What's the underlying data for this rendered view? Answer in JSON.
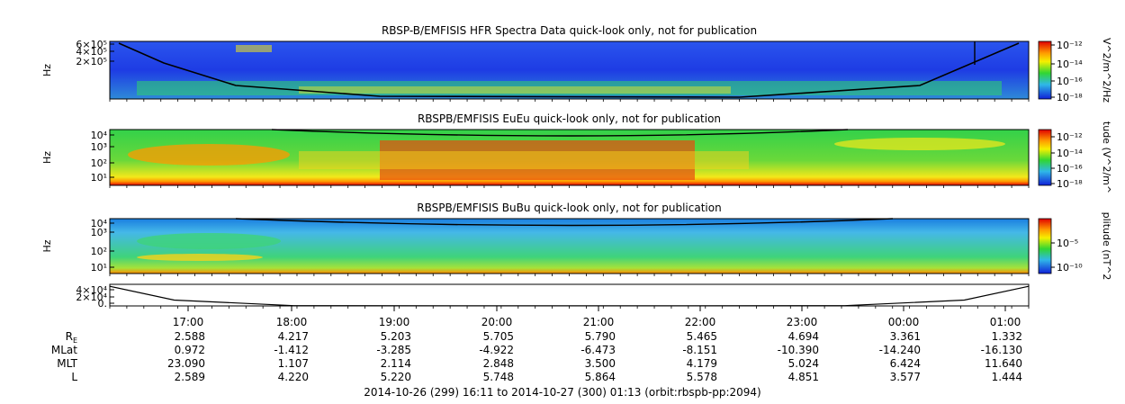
{
  "chart_data": [
    {
      "type": "heatmap",
      "title": "RBSP-B/EMFISIS  HFR Spectra Data quick-look only, not for publication",
      "ylabel": "Hz",
      "y_ticks": [
        "6×10⁵",
        "4×10⁵",
        "2×10⁵"
      ],
      "colorbar_label": "V^2/m^2/Hz",
      "colorbar_ticks": [
        "10⁻¹²",
        "10⁻¹⁴",
        "10⁻¹⁶",
        "10⁻¹⁸"
      ],
      "background": "#1f3fe6"
    },
    {
      "type": "heatmap",
      "title": "RBSPB/EMFISIS  EuEu quick-look only, not for publication",
      "ylabel": "Hz",
      "y_ticks": [
        "10⁴",
        "10³",
        "10²",
        "10¹"
      ],
      "colorbar_label": "tude (V^2/m^",
      "colorbar_ticks": [
        "10⁻¹²",
        "10⁻¹⁴",
        "10⁻¹⁶",
        "10⁻¹⁸"
      ],
      "background": "#3ad64a"
    },
    {
      "type": "heatmap",
      "title": "RBSPB/EMFISIS  BuBu quick-look only, not for publication",
      "ylabel": "Hz",
      "y_ticks": [
        "10⁴",
        "10³",
        "10²",
        "10¹"
      ],
      "colorbar_label": "plitude (nT^2",
      "colorbar_ticks": [
        "10⁻⁵",
        "10⁻¹⁰"
      ],
      "background": "#45b8e8"
    },
    {
      "type": "line",
      "title": "",
      "y_ticks": [
        "4×10⁴",
        "2×10⁴",
        "0."
      ],
      "x": [
        0,
        0.07,
        0.2,
        0.4,
        0.6,
        0.8,
        0.93,
        1.0
      ],
      "values": [
        4.0,
        1.2,
        0.05,
        0.02,
        0.02,
        0.05,
        1.2,
        4.0
      ]
    }
  ],
  "time_axis": {
    "labels": [
      "17:00",
      "18:00",
      "19:00",
      "20:00",
      "21:00",
      "22:00",
      "23:00",
      "00:00",
      "01:00"
    ]
  },
  "ephemeris": [
    {
      "label": "R",
      "sub": "E",
      "values": [
        "2.588",
        "4.217",
        "5.203",
        "5.705",
        "5.790",
        "5.465",
        "4.694",
        "3.361",
        "1.332"
      ]
    },
    {
      "label": "MLat",
      "sub": "",
      "values": [
        "0.972",
        "-1.412",
        "-3.285",
        "-4.922",
        "-6.473",
        "-8.151",
        "-10.390",
        "-14.240",
        "-16.130"
      ]
    },
    {
      "label": "MLT",
      "sub": "",
      "values": [
        "23.090",
        "1.107",
        "2.114",
        "2.848",
        "3.500",
        "4.179",
        "5.024",
        "6.424",
        "11.640"
      ]
    },
    {
      "label": "L",
      "sub": "",
      "values": [
        "2.589",
        "4.220",
        "5.220",
        "5.748",
        "5.864",
        "5.578",
        "4.851",
        "3.577",
        "1.444"
      ]
    }
  ],
  "footer": "2014-10-26 (299) 16:11 to 2014-10-27 (300) 01:13 (orbit:rbspb-pp:2094)"
}
